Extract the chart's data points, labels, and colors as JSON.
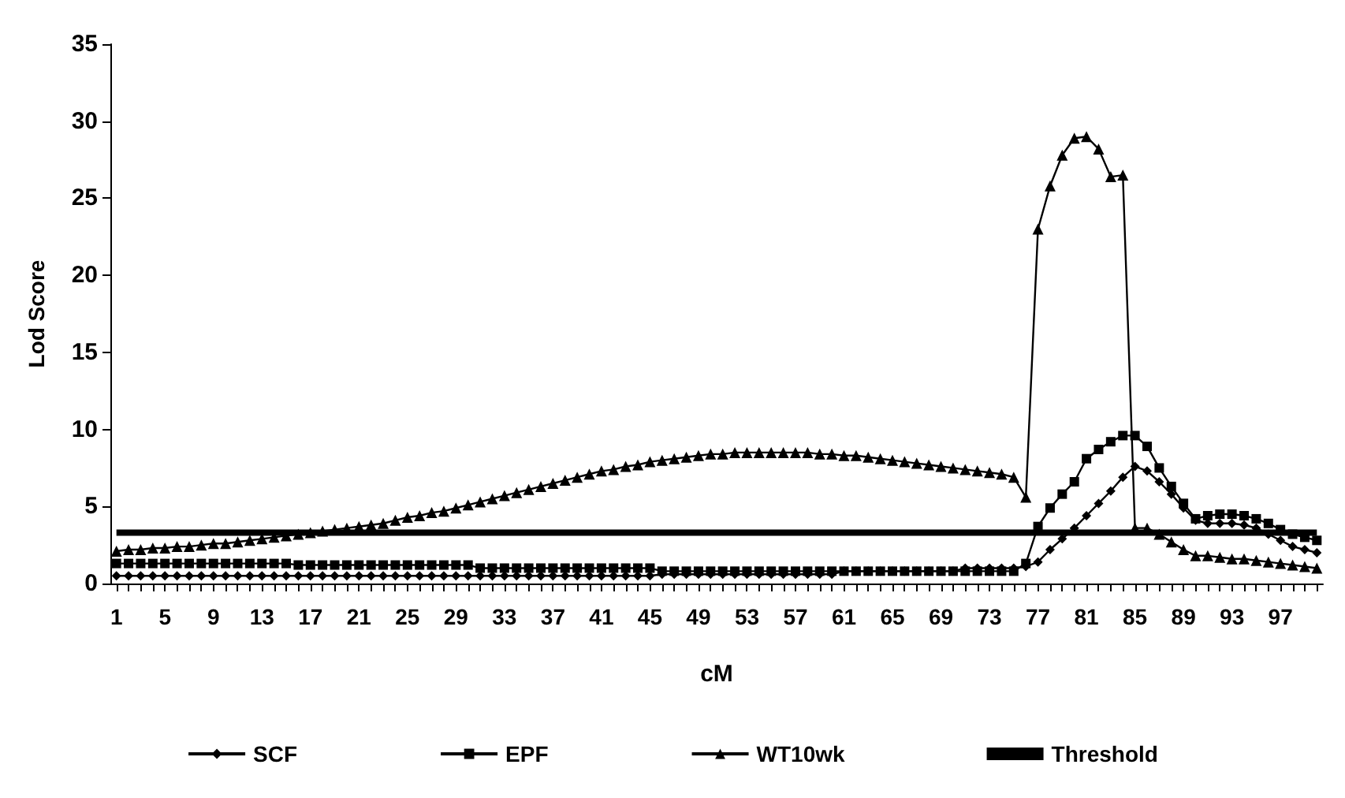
{
  "chart_data": {
    "type": "line",
    "xlabel": "cM",
    "ylabel": "Lod Score",
    "categories": [
      "1",
      null,
      null,
      null,
      "5",
      null,
      null,
      null,
      "9",
      null,
      null,
      null,
      "13",
      null,
      null,
      null,
      "17",
      null,
      null,
      null,
      "21",
      null,
      null,
      null,
      "25",
      null,
      null,
      null,
      "29",
      null,
      null,
      null,
      "33",
      null,
      null,
      null,
      "37",
      null,
      null,
      null,
      "41",
      null,
      null,
      null,
      "45",
      null,
      null,
      null,
      "49",
      null,
      null,
      null,
      "53",
      null,
      null,
      null,
      "57",
      null,
      null,
      null,
      "61",
      null,
      null,
      null,
      "65",
      null,
      null,
      null,
      "69",
      null,
      null,
      null,
      "73",
      null,
      null,
      null,
      "77",
      null,
      null,
      null,
      "81",
      null,
      null,
      null,
      "85",
      null,
      null,
      null,
      "89",
      null,
      null,
      null,
      "93",
      null,
      null,
      null,
      "97",
      null,
      null,
      null
    ],
    "ylim": [
      0,
      35
    ],
    "yticks": [
      0,
      5,
      10,
      15,
      20,
      25,
      30,
      35
    ],
    "grid": false,
    "legend": "bottom",
    "series": [
      {
        "name": "SCF",
        "color": "#000000",
        "marker": "diamond",
        "values": [
          0.5,
          0.5,
          0.5,
          0.5,
          0.5,
          0.5,
          0.5,
          0.5,
          0.5,
          0.5,
          0.5,
          0.5,
          0.5,
          0.5,
          0.5,
          0.5,
          0.5,
          0.5,
          0.5,
          0.5,
          0.5,
          0.5,
          0.5,
          0.5,
          0.5,
          0.5,
          0.5,
          0.5,
          0.5,
          0.5,
          0.5,
          0.5,
          0.5,
          0.5,
          0.5,
          0.5,
          0.5,
          0.5,
          0.5,
          0.5,
          0.5,
          0.5,
          0.5,
          0.5,
          0.5,
          0.6,
          0.6,
          0.6,
          0.6,
          0.6,
          0.6,
          0.6,
          0.6,
          0.6,
          0.6,
          0.6,
          0.6,
          0.6,
          0.6,
          0.6,
          0.8,
          0.8,
          0.8,
          0.8,
          0.8,
          0.8,
          0.8,
          0.8,
          0.8,
          0.8,
          1.0,
          1.0,
          1.0,
          1.0,
          1.0,
          1.1,
          1.4,
          2.2,
          2.9,
          3.6,
          4.4,
          5.2,
          6.0,
          6.9,
          7.6,
          7.3,
          6.6,
          5.8,
          4.9,
          4.1,
          3.9,
          3.9,
          3.9,
          3.8,
          3.6,
          3.2,
          2.8,
          2.4,
          2.2,
          2.0
        ]
      },
      {
        "name": "EPF",
        "color": "#000000",
        "marker": "square",
        "values": [
          1.3,
          1.3,
          1.3,
          1.3,
          1.3,
          1.3,
          1.3,
          1.3,
          1.3,
          1.3,
          1.3,
          1.3,
          1.3,
          1.3,
          1.3,
          1.2,
          1.2,
          1.2,
          1.2,
          1.2,
          1.2,
          1.2,
          1.2,
          1.2,
          1.2,
          1.2,
          1.2,
          1.2,
          1.2,
          1.2,
          1.0,
          1.0,
          1.0,
          1.0,
          1.0,
          1.0,
          1.0,
          1.0,
          1.0,
          1.0,
          1.0,
          1.0,
          1.0,
          1.0,
          1.0,
          0.8,
          0.8,
          0.8,
          0.8,
          0.8,
          0.8,
          0.8,
          0.8,
          0.8,
          0.8,
          0.8,
          0.8,
          0.8,
          0.8,
          0.8,
          0.8,
          0.8,
          0.8,
          0.8,
          0.8,
          0.8,
          0.8,
          0.8,
          0.8,
          0.8,
          0.8,
          0.8,
          0.8,
          0.8,
          0.8,
          1.3,
          3.7,
          4.9,
          5.8,
          6.6,
          8.1,
          8.7,
          9.2,
          9.6,
          9.6,
          8.9,
          7.5,
          6.3,
          5.2,
          4.2,
          4.4,
          4.5,
          4.5,
          4.4,
          4.2,
          3.9,
          3.5,
          3.2,
          3.0,
          2.8
        ]
      },
      {
        "name": "WT10wk",
        "color": "#000000",
        "marker": "triangle",
        "values": [
          2.1,
          2.2,
          2.2,
          2.3,
          2.3,
          2.4,
          2.4,
          2.5,
          2.6,
          2.6,
          2.7,
          2.8,
          2.9,
          3.0,
          3.1,
          3.2,
          3.3,
          3.4,
          3.5,
          3.6,
          3.7,
          3.8,
          3.9,
          4.1,
          4.3,
          4.4,
          4.6,
          4.7,
          4.9,
          5.1,
          5.3,
          5.5,
          5.7,
          5.9,
          6.1,
          6.3,
          6.5,
          6.7,
          6.9,
          7.1,
          7.3,
          7.4,
          7.6,
          7.7,
          7.9,
          8.0,
          8.1,
          8.2,
          8.3,
          8.4,
          8.4,
          8.5,
          8.5,
          8.5,
          8.5,
          8.5,
          8.5,
          8.5,
          8.4,
          8.4,
          8.3,
          8.3,
          8.2,
          8.1,
          8.0,
          7.9,
          7.8,
          7.7,
          7.6,
          7.5,
          7.4,
          7.3,
          7.2,
          7.1,
          6.9,
          5.6,
          23.0,
          25.8,
          27.8,
          28.9,
          29.0,
          28.2,
          26.4,
          26.5,
          3.6,
          3.6,
          3.2,
          2.7,
          2.2,
          1.8,
          1.8,
          1.7,
          1.6,
          1.6,
          1.5,
          1.4,
          1.3,
          1.2,
          1.1,
          1.0
        ]
      },
      {
        "name": "Threshold",
        "color": "#000000",
        "marker": "none",
        "values": [
          3.3,
          3.3,
          3.3,
          3.3,
          3.3,
          3.3,
          3.3,
          3.3,
          3.3,
          3.3,
          3.3,
          3.3,
          3.3,
          3.3,
          3.3,
          3.3,
          3.3,
          3.3,
          3.3,
          3.3,
          3.3,
          3.3,
          3.3,
          3.3,
          3.3,
          3.3,
          3.3,
          3.3,
          3.3,
          3.3,
          3.3,
          3.3,
          3.3,
          3.3,
          3.3,
          3.3,
          3.3,
          3.3,
          3.3,
          3.3,
          3.3,
          3.3,
          3.3,
          3.3,
          3.3,
          3.3,
          3.3,
          3.3,
          3.3,
          3.3,
          3.3,
          3.3,
          3.3,
          3.3,
          3.3,
          3.3,
          3.3,
          3.3,
          3.3,
          3.3,
          3.3,
          3.3,
          3.3,
          3.3,
          3.3,
          3.3,
          3.3,
          3.3,
          3.3,
          3.3,
          3.3,
          3.3,
          3.3,
          3.3,
          3.3,
          3.3,
          3.3,
          3.3,
          3.3,
          3.3,
          3.3,
          3.3,
          3.3,
          3.3,
          3.3,
          3.3,
          3.3,
          3.3,
          3.3,
          3.3,
          3.3,
          3.3,
          3.3,
          3.3,
          3.3,
          3.3,
          3.3,
          3.3,
          3.3,
          3.3
        ]
      }
    ]
  }
}
